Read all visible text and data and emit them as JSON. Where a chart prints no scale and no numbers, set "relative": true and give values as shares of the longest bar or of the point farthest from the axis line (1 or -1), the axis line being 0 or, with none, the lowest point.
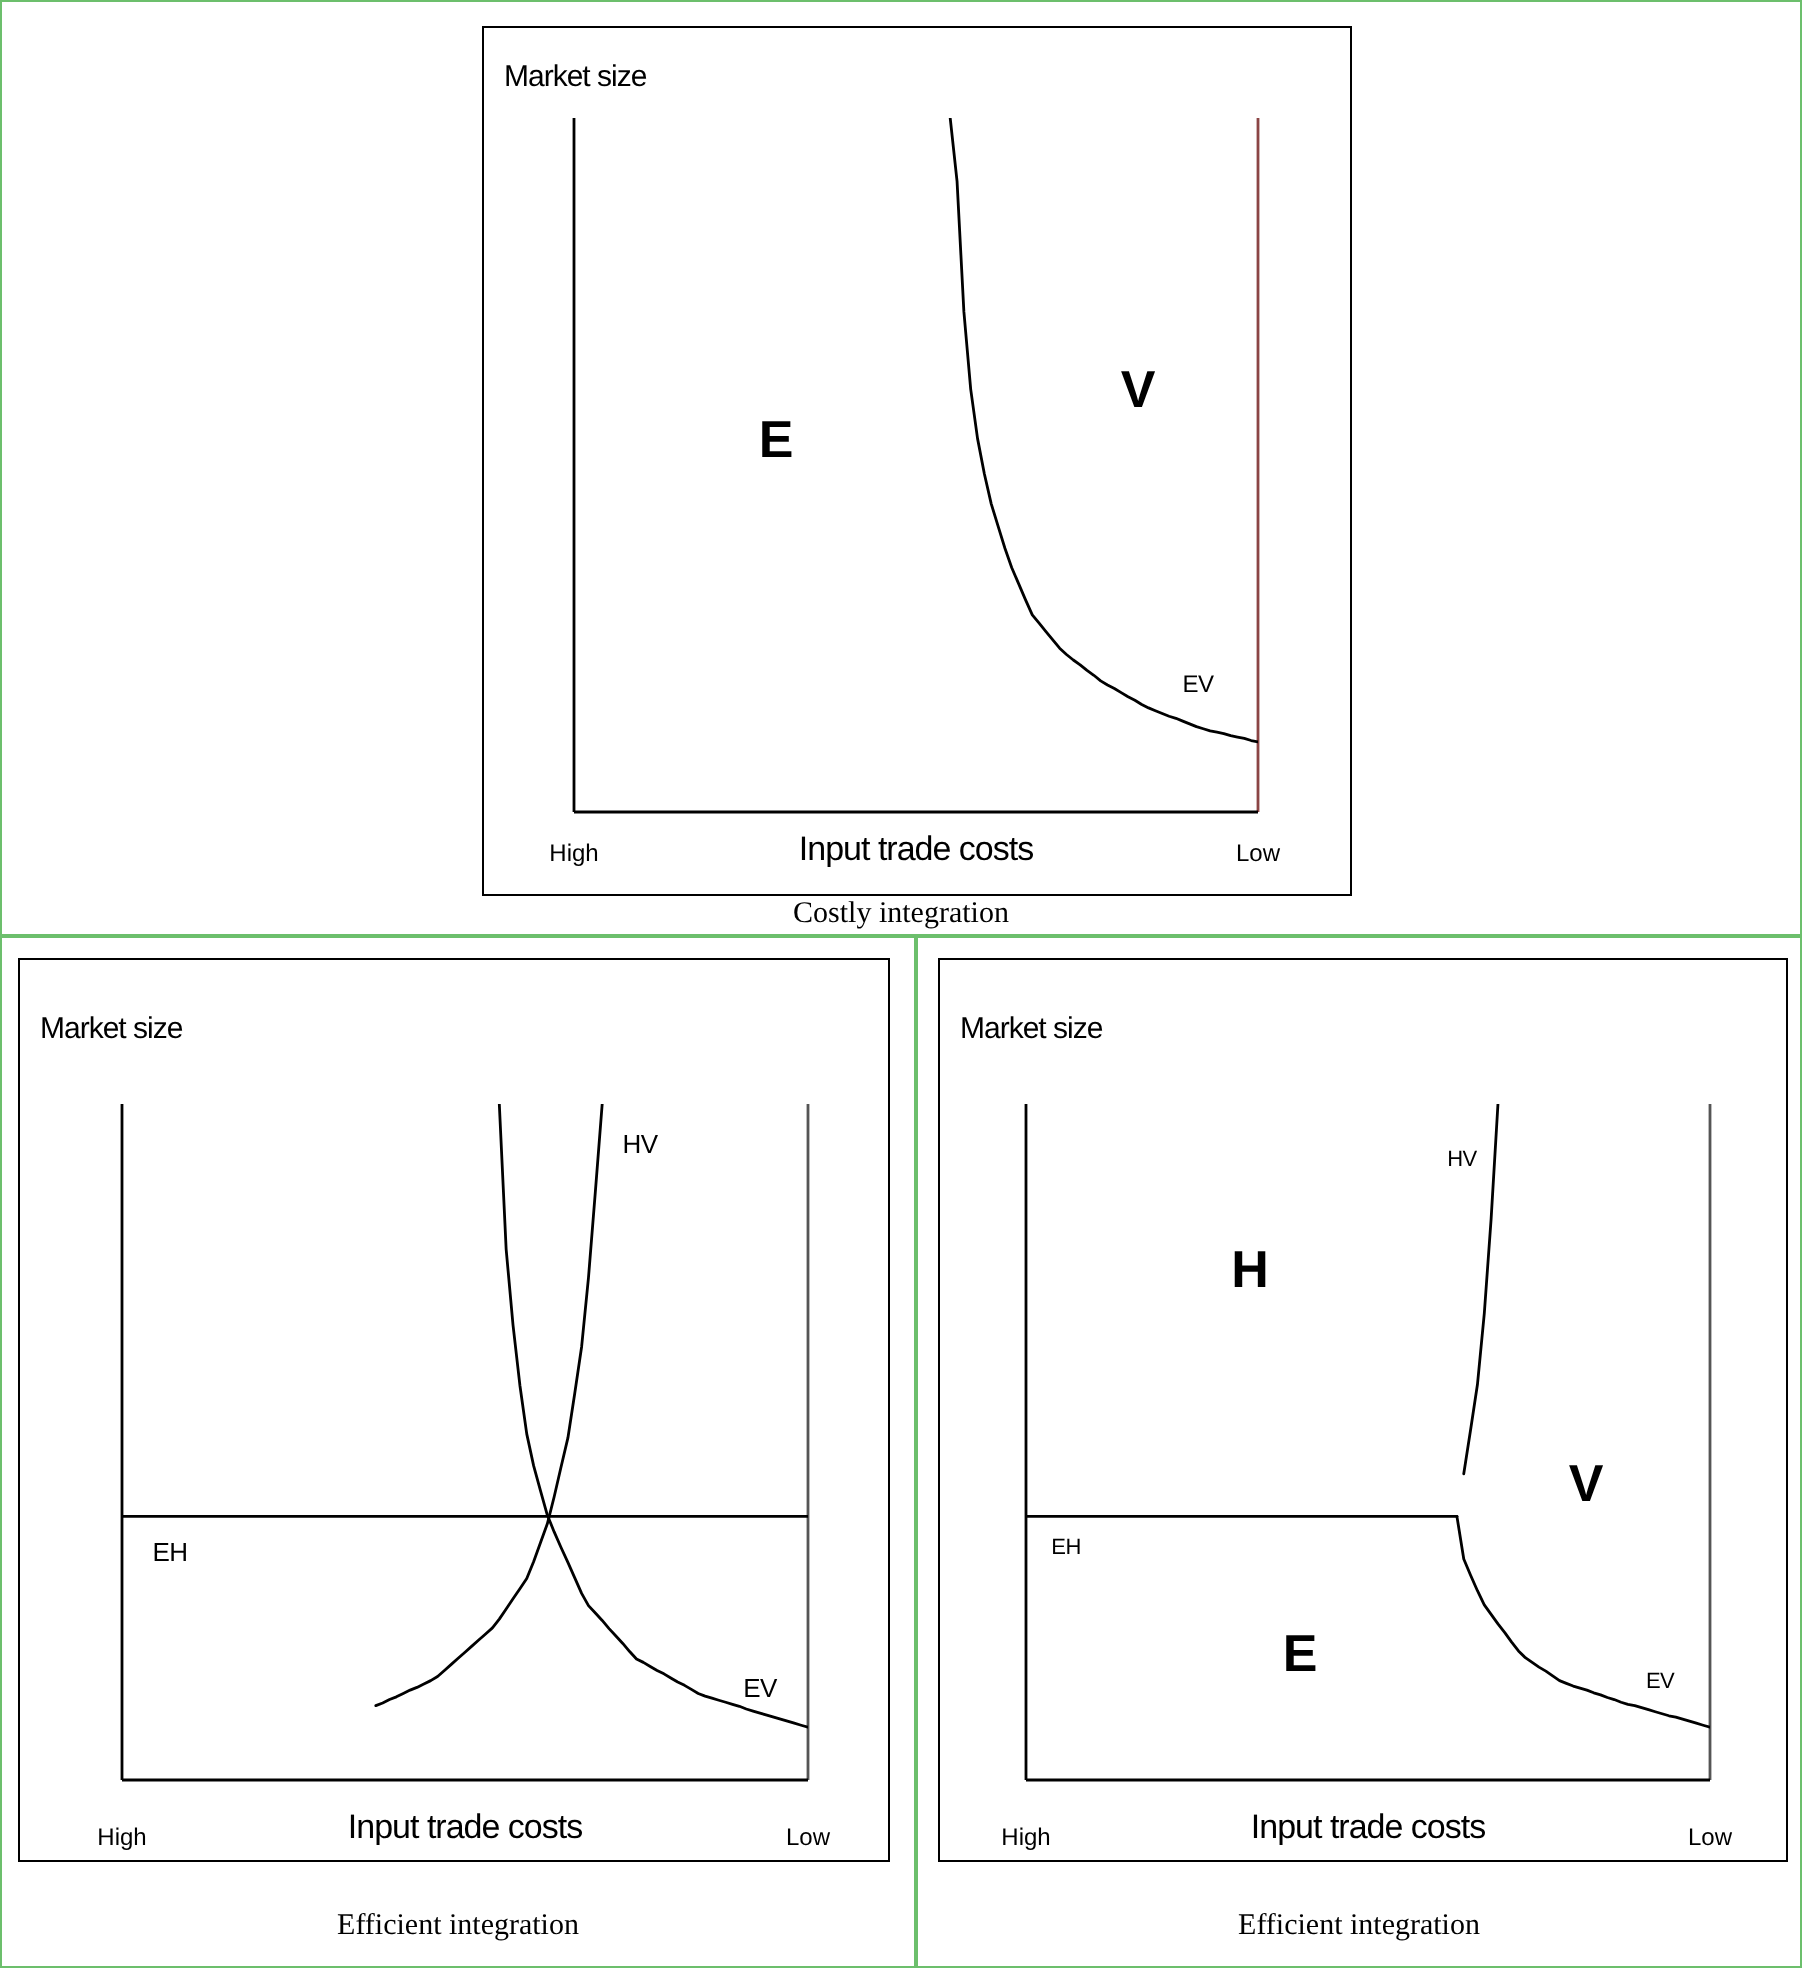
{
  "chart_data": [
    {
      "type": "line",
      "relative": true,
      "title": "Costly integration",
      "xlabel": "Input trade costs",
      "ylabel": "Market size",
      "categories": [
        "High",
        null,
        null,
        null,
        null,
        null,
        null,
        null,
        null,
        null,
        null,
        null,
        null,
        null,
        null,
        null,
        null,
        null,
        null,
        null,
        null,
        null,
        null,
        null,
        null,
        null,
        null,
        null,
        null,
        null,
        null,
        null,
        null,
        null,
        null,
        null,
        null,
        null,
        null,
        null,
        null,
        null,
        null,
        null,
        null,
        null,
        null,
        null,
        null,
        null,
        null,
        null,
        null,
        null,
        null,
        null,
        null,
        null,
        null,
        null,
        null,
        null,
        null,
        null,
        null,
        null,
        null,
        null,
        null,
        null,
        null,
        null,
        null,
        null,
        null,
        null,
        null,
        null,
        null,
        null,
        null,
        null,
        null,
        null,
        null,
        null,
        null,
        null,
        null,
        null,
        null,
        null,
        null,
        null,
        null,
        null,
        null,
        null,
        null,
        null,
        "Low"
      ],
      "series": [
        {
          "color": "#000000",
          "values": [
            null,
            null,
            null,
            null,
            null,
            null,
            null,
            null,
            null,
            null,
            null,
            null,
            null,
            null,
            null,
            null,
            null,
            null,
            null,
            null,
            null,
            null,
            null,
            null,
            null,
            null,
            null,
            null,
            null,
            null,
            null,
            null,
            null,
            null,
            null,
            null,
            null,
            null,
            null,
            null,
            null,
            null,
            null,
            null,
            null,
            null,
            null,
            null,
            null,
            null,
            null,
            null,
            null,
            null,
            null,
            1.0,
            0.909,
            0.721,
            0.609,
            0.538,
            0.487,
            0.444,
            0.412,
            0.38,
            0.352,
            0.329,
            0.306,
            0.284,
            0.272,
            0.26,
            0.248,
            0.236,
            0.227,
            0.219,
            0.212,
            0.204,
            0.197,
            0.189,
            0.183,
            0.178,
            0.172,
            0.166,
            0.161,
            0.155,
            0.15,
            0.146,
            0.142,
            0.138,
            0.135,
            0.131,
            0.127,
            0.123,
            0.12,
            0.117,
            0.115,
            0.113,
            0.11,
            0.108,
            0.106,
            0.103,
            0.101
          ]
        }
      ],
      "ref_lines": [
        {
          "axis": "x",
          "value": "Low",
          "color": "#8b4545"
        }
      ],
      "annotations": [
        "E",
        "V",
        "EV"
      ]
    },
    {
      "type": "line",
      "relative": true,
      "title": "Efficient integration",
      "xlabel": "Input trade costs",
      "ylabel": "Market size",
      "categories": [
        "High",
        null,
        null,
        null,
        null,
        null,
        null,
        null,
        null,
        null,
        null,
        null,
        null,
        null,
        null,
        null,
        null,
        null,
        null,
        null,
        null,
        null,
        null,
        null,
        null,
        null,
        null,
        null,
        null,
        null,
        null,
        null,
        null,
        null,
        null,
        null,
        null,
        null,
        null,
        null,
        null,
        null,
        null,
        null,
        null,
        null,
        null,
        null,
        null,
        null,
        null,
        null,
        null,
        null,
        null,
        null,
        null,
        null,
        null,
        null,
        null,
        null,
        null,
        null,
        null,
        null,
        null,
        null,
        null,
        null,
        null,
        null,
        null,
        null,
        null,
        null,
        null,
        null,
        null,
        null,
        null,
        null,
        null,
        null,
        null,
        null,
        null,
        null,
        null,
        null,
        null,
        null,
        null,
        null,
        null,
        null,
        null,
        null,
        null,
        null,
        "Low"
      ],
      "series": [
        {
          "color": "#000000",
          "values": [
            0.39,
            0.39,
            0.39,
            0.39,
            0.39,
            0.39,
            0.39,
            0.39,
            0.39,
            0.39,
            0.39,
            0.39,
            0.39,
            0.39,
            0.39,
            0.39,
            0.39,
            0.39,
            0.39,
            0.39,
            0.39,
            0.39,
            0.39,
            0.39,
            0.39,
            0.39,
            0.39,
            0.39,
            0.39,
            0.39,
            0.39,
            0.39,
            0.39,
            0.39,
            0.39,
            0.39,
            0.39,
            0.39,
            0.39,
            0.39,
            0.39,
            0.39,
            0.39,
            0.39,
            0.39,
            0.39,
            0.39,
            0.39,
            0.39,
            0.39,
            0.39,
            0.39,
            0.39,
            0.39,
            0.39,
            0.39,
            0.39,
            0.39,
            0.39,
            0.39,
            0.39,
            0.39,
            0.39,
            0.39,
            0.39,
            0.39,
            0.39,
            0.39,
            0.39,
            0.39,
            0.39,
            0.39,
            0.39,
            0.39,
            0.39,
            0.39,
            0.39,
            0.39,
            0.39,
            0.39,
            0.39,
            0.39,
            0.39,
            0.39,
            0.39,
            0.39,
            0.39,
            0.39,
            0.39,
            0.39,
            0.39,
            0.39,
            0.39,
            0.39,
            0.39,
            0.39,
            0.39,
            0.39,
            0.39,
            0.39,
            0.39
          ]
        },
        {
          "color": "#000000",
          "values": [
            null,
            null,
            null,
            null,
            null,
            null,
            null,
            null,
            null,
            null,
            null,
            null,
            null,
            null,
            null,
            null,
            null,
            null,
            null,
            null,
            null,
            null,
            null,
            null,
            null,
            null,
            null,
            null,
            null,
            null,
            null,
            null,
            null,
            null,
            null,
            null,
            null,
            0.11,
            0.114,
            0.119,
            0.123,
            0.128,
            0.133,
            0.137,
            0.142,
            0.147,
            0.153,
            0.162,
            0.171,
            0.18,
            0.189,
            0.198,
            0.207,
            0.216,
            0.225,
            0.238,
            0.253,
            0.268,
            0.283,
            0.298,
            0.323,
            0.351,
            0.379,
            0.419,
            0.463,
            0.506,
            0.572,
            0.641,
            0.743,
            0.87,
            1.0,
            null,
            null,
            null,
            null,
            null,
            null,
            null,
            null,
            null,
            null,
            null,
            null,
            null,
            null,
            null,
            null,
            null,
            null,
            null,
            null,
            null,
            null,
            null,
            null,
            null,
            null,
            null,
            null,
            null,
            null
          ]
        },
        {
          "color": "#000000",
          "values": [
            null,
            null,
            null,
            null,
            null,
            null,
            null,
            null,
            null,
            null,
            null,
            null,
            null,
            null,
            null,
            null,
            null,
            null,
            null,
            null,
            null,
            null,
            null,
            null,
            null,
            null,
            null,
            null,
            null,
            null,
            null,
            null,
            null,
            null,
            null,
            null,
            null,
            null,
            null,
            null,
            null,
            null,
            null,
            null,
            null,
            null,
            null,
            null,
            null,
            null,
            null,
            null,
            null,
            null,
            null,
            1.0,
            0.785,
            0.673,
            0.584,
            0.512,
            0.465,
            0.428,
            0.392,
            0.367,
            0.344,
            0.322,
            0.299,
            0.276,
            0.258,
            0.247,
            0.236,
            0.224,
            0.213,
            0.202,
            0.19,
            0.179,
            0.174,
            0.168,
            0.162,
            0.157,
            0.151,
            0.145,
            0.14,
            0.134,
            0.128,
            0.124,
            0.121,
            0.118,
            0.115,
            0.112,
            0.109,
            0.105,
            0.102,
            0.099,
            0.096,
            0.093,
            0.09,
            0.087,
            0.084,
            0.081,
            0.078
          ]
        }
      ],
      "ref_lines": [
        {
          "axis": "x",
          "value": "Low",
          "color": "#555555"
        }
      ],
      "annotations": [
        "HV",
        "EV",
        "EH"
      ]
    },
    {
      "type": "line",
      "relative": true,
      "title": "Efficient integration",
      "xlabel": "Input trade costs",
      "ylabel": "Market size",
      "categories": [
        "High",
        null,
        null,
        null,
        null,
        null,
        null,
        null,
        null,
        null,
        null,
        null,
        null,
        null,
        null,
        null,
        null,
        null,
        null,
        null,
        null,
        null,
        null,
        null,
        null,
        null,
        null,
        null,
        null,
        null,
        null,
        null,
        null,
        null,
        null,
        null,
        null,
        null,
        null,
        null,
        null,
        null,
        null,
        null,
        null,
        null,
        null,
        null,
        null,
        null,
        null,
        null,
        null,
        null,
        null,
        null,
        null,
        null,
        null,
        null,
        null,
        null,
        null,
        null,
        null,
        null,
        null,
        null,
        null,
        null,
        null,
        null,
        null,
        null,
        null,
        null,
        null,
        null,
        null,
        null,
        null,
        null,
        null,
        null,
        null,
        null,
        null,
        null,
        null,
        null,
        null,
        null,
        null,
        null,
        null,
        null,
        null,
        null,
        null,
        null,
        "Low"
      ],
      "series": [
        {
          "color": "#000000",
          "values": [
            0.39,
            0.39,
            0.39,
            0.39,
            0.39,
            0.39,
            0.39,
            0.39,
            0.39,
            0.39,
            0.39,
            0.39,
            0.39,
            0.39,
            0.39,
            0.39,
            0.39,
            0.39,
            0.39,
            0.39,
            0.39,
            0.39,
            0.39,
            0.39,
            0.39,
            0.39,
            0.39,
            0.39,
            0.39,
            0.39,
            0.39,
            0.39,
            0.39,
            0.39,
            0.39,
            0.39,
            0.39,
            0.39,
            0.39,
            0.39,
            0.39,
            0.39,
            0.39,
            0.39,
            0.39,
            0.39,
            0.39,
            0.39,
            0.39,
            0.39,
            0.39,
            0.39,
            0.39,
            0.39,
            0.39,
            0.39,
            0.39,
            0.39,
            0.39,
            0.39,
            0.39,
            0.39,
            0.39,
            0.39,
            null,
            null,
            null,
            null,
            null,
            null,
            null,
            null,
            null,
            null,
            null,
            null,
            null,
            null,
            null,
            null,
            null,
            null,
            null,
            null,
            null,
            null,
            null,
            null,
            null,
            null,
            null,
            null,
            null,
            null,
            null,
            null,
            null,
            null,
            null,
            null,
            null
          ]
        },
        {
          "color": "#000000",
          "values": [
            null,
            null,
            null,
            null,
            null,
            null,
            null,
            null,
            null,
            null,
            null,
            null,
            null,
            null,
            null,
            null,
            null,
            null,
            null,
            null,
            null,
            null,
            null,
            null,
            null,
            null,
            null,
            null,
            null,
            null,
            null,
            null,
            null,
            null,
            null,
            null,
            null,
            null,
            null,
            null,
            null,
            null,
            null,
            null,
            null,
            null,
            null,
            null,
            null,
            null,
            null,
            null,
            null,
            null,
            null,
            null,
            null,
            null,
            null,
            null,
            null,
            null,
            null,
            null,
            0.453,
            0.518,
            0.585,
            0.69,
            0.83,
            1.0,
            null,
            null,
            null,
            null,
            null,
            null,
            null,
            null,
            null,
            null,
            null,
            null,
            null,
            null,
            null,
            null,
            null,
            null,
            null,
            null,
            null,
            null,
            null,
            null,
            null,
            null,
            null,
            null,
            null,
            null,
            null
          ]
        },
        {
          "color": "#000000",
          "values": [
            null,
            null,
            null,
            null,
            null,
            null,
            null,
            null,
            null,
            null,
            null,
            null,
            null,
            null,
            null,
            null,
            null,
            null,
            null,
            null,
            null,
            null,
            null,
            null,
            null,
            null,
            null,
            null,
            null,
            null,
            null,
            null,
            null,
            null,
            null,
            null,
            null,
            null,
            null,
            null,
            null,
            null,
            null,
            null,
            null,
            null,
            null,
            null,
            null,
            null,
            null,
            null,
            null,
            null,
            null,
            null,
            null,
            null,
            null,
            null,
            null,
            null,
            null,
            0.39,
            0.327,
            0.303,
            0.28,
            0.259,
            0.245,
            0.231,
            0.218,
            0.204,
            0.191,
            0.181,
            0.174,
            0.167,
            0.161,
            0.154,
            0.147,
            0.143,
            0.139,
            0.136,
            0.133,
            0.129,
            0.126,
            0.122,
            0.119,
            0.115,
            0.112,
            0.11,
            0.107,
            0.104,
            0.101,
            0.098,
            0.095,
            0.093,
            0.09,
            0.087,
            0.084,
            0.081,
            0.078
          ]
        }
      ],
      "ref_lines": [
        {
          "axis": "x",
          "value": "Low",
          "color": "#555555"
        }
      ],
      "annotations": [
        "HV",
        "H",
        "V",
        "EH",
        "E",
        "EV"
      ]
    }
  ]
}
